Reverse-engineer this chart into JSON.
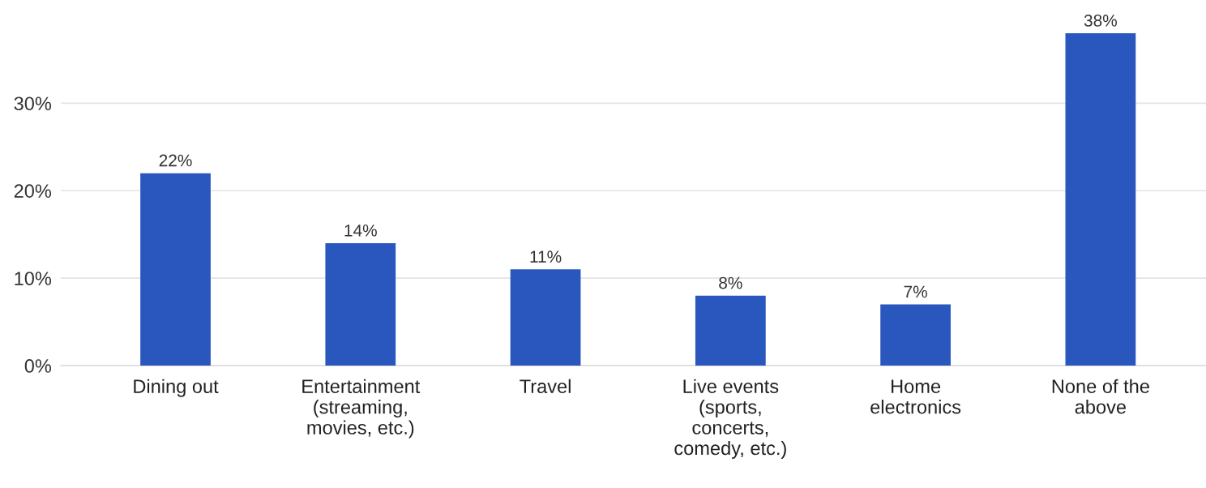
{
  "chart_data": {
    "type": "bar",
    "categories": [
      "Dining out",
      "Entertainment\n(streaming,\nmovies, etc.)",
      "Travel",
      "Live events\n(sports,\nconcerts,\ncomedy, etc.)",
      "Home\nelectronics",
      "None of the\nabove"
    ],
    "values": [
      22,
      14,
      11,
      8,
      7,
      38
    ],
    "color": "#2a57be",
    "ylim": [
      0,
      38
    ],
    "yticks": [
      {
        "value": 0,
        "label": "0%"
      },
      {
        "value": 10,
        "label": "10%"
      },
      {
        "value": 20,
        "label": "20%"
      },
      {
        "value": 30,
        "label": "30%"
      }
    ],
    "grid": "y",
    "data_labels": true,
    "value_labels": [
      "22%",
      "14%",
      "11%",
      "8%",
      "7%",
      "38%"
    ]
  }
}
